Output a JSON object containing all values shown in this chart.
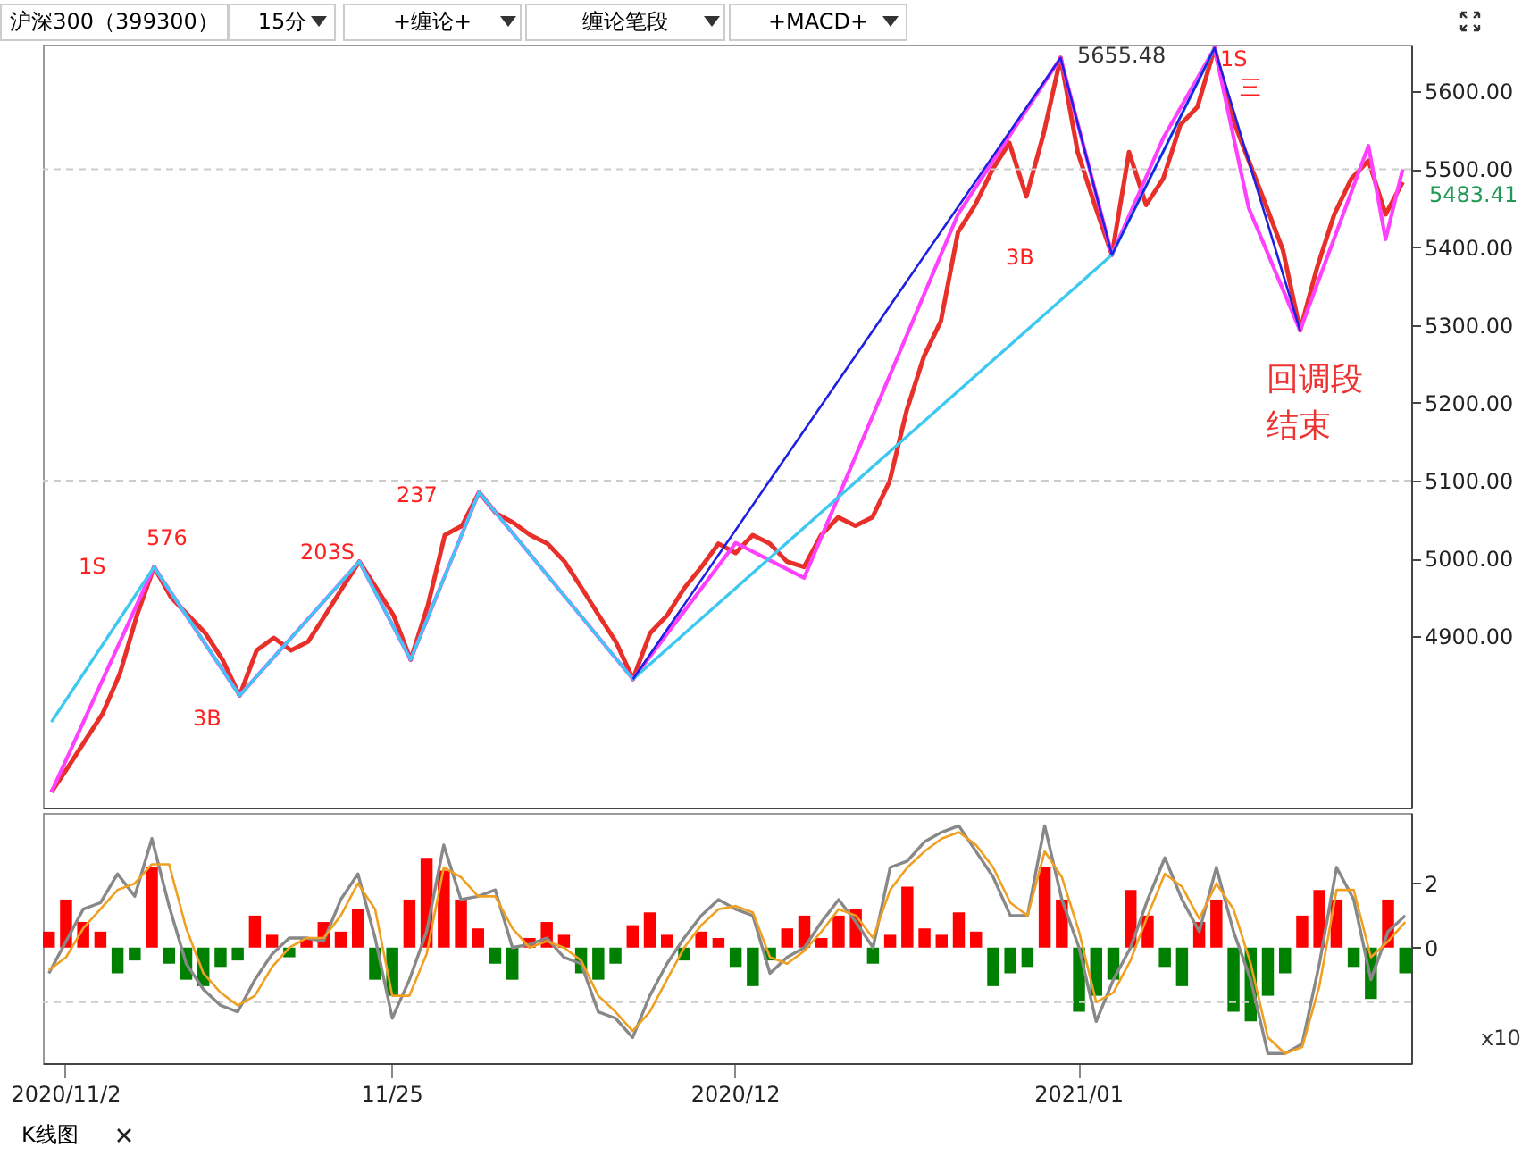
{
  "chart_data": [
    {
      "type": "line",
      "title": "沪深300（399300）",
      "annotations": [
        "15分",
        "+缠论+",
        "缠论笔段",
        "+MACD+",
        "K线图",
        "1S",
        "576",
        "3B",
        "203S",
        "237",
        "3B",
        "5655.48",
        "1S",
        "三",
        "回调段结束",
        "5483.41"
      ],
      "categories": [
        null,
        null,
        null,
        null,
        null,
        null,
        null,
        null,
        null,
        null,
        null,
        null,
        null,
        null,
        null,
        null,
        null,
        null,
        null,
        null,
        null,
        null,
        null,
        null,
        null,
        null,
        null,
        null,
        null,
        null,
        null,
        null,
        null,
        null,
        null,
        null,
        null,
        null,
        null,
        null,
        null,
        null,
        null,
        null,
        null,
        null,
        null,
        null,
        null,
        null,
        null,
        null,
        null,
        null,
        null,
        null,
        null,
        null,
        null,
        null,
        null,
        null,
        null,
        null,
        null,
        null,
        null,
        null,
        null,
        null,
        null,
        null,
        null,
        null,
        null,
        null,
        null,
        null,
        null,
        null
      ],
      "series": [
        {
          "color": "#e8302a",
          "values": [
            4700,
            4733,
            4767,
            4801,
            4852,
            4927,
            4989,
            4950,
            4927,
            4904,
            4870,
            4824,
            4882,
            4898,
            4882,
            4893,
            4927,
            4962,
            4996,
            4962,
            4927,
            4870,
            4939,
            5030,
            5042,
            5085,
            5058,
            5046,
            5030,
            5019,
            4996,
            4962,
            4927,
            4893,
            4845,
            4904,
            4927,
            4962,
            4989,
            5019,
            5007,
            5030,
            5019,
            4996,
            4989,
            5030,
            5053,
            5042,
            5053,
            5099,
            5190,
            5259,
            5305,
            5419,
            5454,
            5499,
            5534,
            5465,
            5545,
            5643,
            5522,
            5454,
            5390,
            5522,
            5454,
            5488,
            5557,
            5580,
            5655.48,
            5568,
            5511,
            5454,
            5396,
            5293,
            5374,
            5442,
            5488,
            5511,
            5442,
            5483.41
          ]
        },
        {
          "color": "#ff40ff",
          "values": [
            4700,
            null,
            null,
            null,
            null,
            null,
            4989,
            null,
            null,
            null,
            null,
            4824,
            null,
            null,
            null,
            null,
            null,
            null,
            4996,
            null,
            null,
            4870,
            null,
            null,
            null,
            5085,
            null,
            null,
            null,
            null,
            null,
            null,
            null,
            null,
            4845,
            null,
            null,
            null,
            null,
            null,
            5020,
            null,
            null,
            null,
            4975,
            null,
            null,
            null,
            null,
            null,
            null,
            null,
            null,
            5442,
            null,
            null,
            null,
            null,
            null,
            5643,
            null,
            null,
            5390,
            null,
            null,
            5540,
            null,
            null,
            5655.48,
            null,
            5450,
            null,
            null,
            5293,
            null,
            null,
            null,
            5530,
            5410,
            5500
          ]
        },
        {
          "color": "#3cc8f0",
          "values": [
            4790,
            null,
            null,
            null,
            null,
            null,
            4989,
            null,
            null,
            null,
            null,
            4824,
            null,
            null,
            null,
            null,
            null,
            null,
            4996,
            null,
            null,
            4870,
            null,
            null,
            null,
            5085,
            null,
            null,
            null,
            null,
            null,
            null,
            null,
            null,
            4845,
            null,
            null,
            null,
            null,
            null,
            null,
            null,
            null,
            null,
            null,
            null,
            null,
            null,
            null,
            null,
            null,
            null,
            null,
            null,
            null,
            null,
            null,
            null,
            null,
            null,
            null,
            null,
            5390,
            null,
            null,
            null,
            null,
            null,
            5655.48,
            null,
            null,
            null,
            null,
            null,
            null,
            null,
            null,
            null,
            null,
            null
          ]
        },
        {
          "color": "#2020e0",
          "values": [
            null,
            null,
            null,
            null,
            null,
            null,
            null,
            null,
            null,
            null,
            null,
            null,
            null,
            null,
            null,
            null,
            null,
            null,
            null,
            null,
            null,
            null,
            null,
            null,
            null,
            null,
            null,
            null,
            null,
            null,
            null,
            null,
            null,
            null,
            4845,
            null,
            null,
            null,
            null,
            null,
            null,
            null,
            null,
            null,
            null,
            null,
            null,
            null,
            null,
            null,
            null,
            null,
            null,
            null,
            null,
            null,
            null,
            null,
            null,
            5643,
            null,
            null,
            5390,
            null,
            null,
            null,
            null,
            null,
            5655.48,
            null,
            null,
            null,
            null,
            5293,
            null,
            null,
            null,
            null,
            null,
            null
          ]
        }
      ],
      "ylim": [
        4680,
        5660
      ],
      "yticks": [
        {
          "value": 4900,
          "label": "4900.00"
        },
        {
          "value": 5000,
          "label": "5000.00"
        },
        {
          "value": 5100,
          "label": "5100.00"
        },
        {
          "value": 5200,
          "label": "5200.00"
        },
        {
          "value": 5300,
          "label": "5300.00"
        },
        {
          "value": 5400,
          "label": "5400.00"
        },
        {
          "value": 5500,
          "label": "5500.00"
        },
        {
          "value": 5600,
          "label": "5600.00"
        }
      ],
      "ref_lines": [
        {
          "axis": "y",
          "value": 5500,
          "color": "#cccccc",
          "line_style": "dashed"
        },
        {
          "axis": "y",
          "value": 5100,
          "color": "#cccccc",
          "line_style": "dashed"
        }
      ],
      "tick_labels": "y"
    },
    {
      "type": "bar",
      "annotations": [
        "x10"
      ],
      "categories": [
        null,
        "2020/11/2",
        null,
        null,
        null,
        null,
        null,
        null,
        null,
        null,
        null,
        null,
        null,
        null,
        null,
        null,
        null,
        null,
        null,
        null,
        "11/25",
        null,
        null,
        null,
        null,
        null,
        null,
        null,
        null,
        null,
        null,
        null,
        null,
        null,
        null,
        null,
        null,
        null,
        null,
        null,
        "2020/12",
        null,
        null,
        null,
        null,
        null,
        null,
        null,
        null,
        null,
        null,
        null,
        null,
        null,
        null,
        null,
        null,
        null,
        null,
        null,
        "2021/01",
        null,
        null,
        null,
        null,
        null,
        null,
        null,
        null,
        null,
        null,
        null,
        null,
        null,
        null,
        null,
        null,
        null,
        null,
        null
      ],
      "series": [
        {
          "values": [
            0.5,
            1.5,
            0.8,
            0.5,
            -0.8,
            -0.4,
            2.5,
            -0.5,
            -1.0,
            -1.2,
            -0.6,
            -0.4,
            1.0,
            0.4,
            -0.3,
            0.3,
            0.8,
            0.5,
            1.2,
            -1.0,
            -1.5,
            1.5,
            2.8,
            2.4,
            1.5,
            0.6,
            -0.5,
            -1.0,
            0.3,
            0.8,
            0.4,
            -0.8,
            -1.0,
            -0.5,
            0.7,
            1.1,
            0.4,
            -0.4,
            0.5,
            0.3,
            -0.6,
            -1.2,
            -0.4,
            0.6,
            1.0,
            0.3,
            1.0,
            1.2,
            -0.5,
            0.4,
            1.9,
            0.6,
            0.4,
            1.1,
            0.5,
            -1.2,
            -0.8,
            -0.6,
            2.5,
            1.5,
            -2.0,
            -1.5,
            -1.0,
            1.8,
            1.0,
            -0.6,
            -1.2,
            0.8,
            1.5,
            -2.0,
            -2.3,
            -1.5,
            -0.8,
            1.0,
            1.8,
            1.5,
            -0.6,
            -1.6,
            1.5,
            -0.8
          ],
          "colors": [
            "#ff0000",
            "#ff0000",
            "#ff0000",
            "#ff0000",
            "#008000",
            "#008000",
            "#ff0000",
            "#008000",
            "#008000",
            "#008000",
            "#008000",
            "#008000",
            "#ff0000",
            "#ff0000",
            "#008000",
            "#ff0000",
            "#ff0000",
            "#ff0000",
            "#ff0000",
            "#008000",
            "#008000",
            "#ff0000",
            "#ff0000",
            "#ff0000",
            "#ff0000",
            "#ff0000",
            "#008000",
            "#008000",
            "#ff0000",
            "#ff0000",
            "#ff0000",
            "#008000",
            "#008000",
            "#008000",
            "#ff0000",
            "#ff0000",
            "#ff0000",
            "#008000",
            "#ff0000",
            "#ff0000",
            "#008000",
            "#008000",
            "#008000",
            "#ff0000",
            "#ff0000",
            "#ff0000",
            "#ff0000",
            "#ff0000",
            "#008000",
            "#ff0000",
            "#ff0000",
            "#ff0000",
            "#ff0000",
            "#ff0000",
            "#ff0000",
            "#008000",
            "#008000",
            "#008000",
            "#ff0000",
            "#ff0000",
            "#008000",
            "#008000",
            "#008000",
            "#ff0000",
            "#ff0000",
            "#008000",
            "#008000",
            "#ff0000",
            "#ff0000",
            "#008000",
            "#008000",
            "#008000",
            "#008000",
            "#ff0000",
            "#ff0000",
            "#ff0000",
            "#008000",
            "#008000",
            "#ff0000",
            "#008000"
          ]
        },
        {
          "type": "line",
          "color": "#888888",
          "values": [
            -0.8,
            0.2,
            1.2,
            1.4,
            2.3,
            1.6,
            3.4,
            1.3,
            -0.5,
            -1.3,
            -1.8,
            -2.0,
            -1.0,
            -0.2,
            0.3,
            0.3,
            0.2,
            1.5,
            2.3,
            0.3,
            -2.2,
            -1.0,
            0.5,
            3.2,
            1.5,
            1.6,
            1.8,
            0.0,
            0.1,
            0.3,
            -0.3,
            -0.5,
            -2.0,
            -2.2,
            -2.8,
            -1.5,
            -0.5,
            0.3,
            1.0,
            1.5,
            1.2,
            1.0,
            -0.8,
            -0.3,
            0.0,
            0.8,
            1.5,
            0.8,
            0.0,
            2.5,
            2.7,
            3.3,
            3.6,
            3.8,
            3.0,
            2.2,
            1.0,
            1.0,
            3.8,
            1.5,
            0.0,
            -2.3,
            -1.0,
            0.0,
            1.5,
            2.8,
            1.5,
            0.5,
            2.5,
            0.5,
            -1.0,
            -3.3,
            -3.3,
            -3.0,
            -0.5,
            2.5,
            1.5,
            -1.0,
            0.5,
            1.0
          ]
        },
        {
          "type": "line",
          "color": "#f0a020",
          "values": [
            -0.7,
            -0.3,
            0.6,
            1.2,
            1.8,
            2.0,
            2.6,
            2.6,
            0.6,
            -0.8,
            -1.4,
            -1.8,
            -1.5,
            -0.6,
            0.0,
            0.3,
            0.3,
            1.0,
            2.0,
            1.2,
            -1.5,
            -1.5,
            -0.2,
            2.5,
            2.2,
            1.6,
            1.6,
            0.6,
            0.0,
            0.2,
            0.0,
            -0.4,
            -1.5,
            -2.0,
            -2.6,
            -2.0,
            -1.0,
            0.0,
            0.7,
            1.2,
            1.3,
            1.1,
            -0.3,
            -0.5,
            -0.1,
            0.5,
            1.2,
            1.0,
            0.3,
            1.8,
            2.5,
            3.0,
            3.4,
            3.6,
            3.2,
            2.5,
            1.4,
            1.0,
            3.0,
            2.2,
            0.5,
            -1.7,
            -1.4,
            -0.4,
            1.0,
            2.3,
            1.9,
            0.9,
            2.0,
            1.2,
            -0.5,
            -2.8,
            -3.3,
            -3.1,
            -1.2,
            1.8,
            1.8,
            -0.3,
            0.2,
            0.8
          ]
        }
      ],
      "ylim": [
        -3.6,
        4.2
      ],
      "yticks": [
        0,
        2
      ],
      "ref_lines": [
        {
          "axis": "y",
          "value": -1.7,
          "color": "#cccccc",
          "line_style": "dashed"
        }
      ]
    }
  ]
}
